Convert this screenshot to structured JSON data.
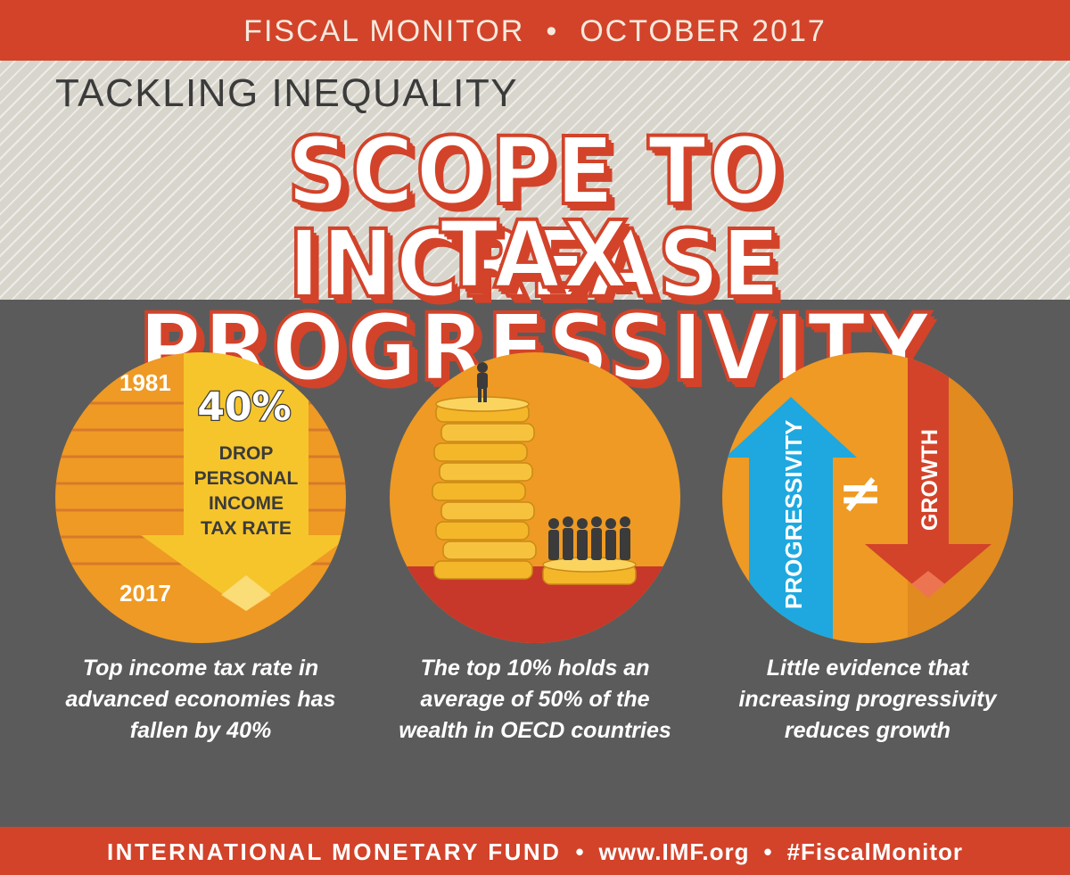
{
  "header": {
    "publication": "FISCAL MONITOR",
    "separator": "•",
    "date": "OCTOBER 2017"
  },
  "hero": {
    "kicker": "TACKLING INEQUALITY",
    "headline_line1": "SCOPE TO INCREASE",
    "headline_line2": "TAX PROGRESSIVITY"
  },
  "panels": [
    {
      "year_start": "1981",
      "year_end": "2017",
      "stat": "40%",
      "arrow_text": [
        "DROP",
        "PERSONAL",
        "INCOME",
        "TAX RATE"
      ],
      "caption": "Top income tax rate in advanced economies has fallen by 40%"
    },
    {
      "caption": "The top 10% holds an average of 50% of the wealth in OECD countries"
    },
    {
      "up_label": "PROGRESSIVITY",
      "down_label": "GROWTH",
      "symbol": "≠",
      "caption": "Little evidence that increasing progressivity reduces growth"
    }
  ],
  "footer": {
    "organization": "INTERNATIONAL MONETARY FUND",
    "separator": "•",
    "website": "www.IMF.org",
    "hashtag": "#FiscalMonitor"
  },
  "colors": {
    "brand_red": "#d2432a",
    "orange": "#ee9a24",
    "yellow": "#f6c52c",
    "blue": "#1ea8df",
    "gold": "#f4b72a",
    "gray_background": "#5b5b5b"
  }
}
